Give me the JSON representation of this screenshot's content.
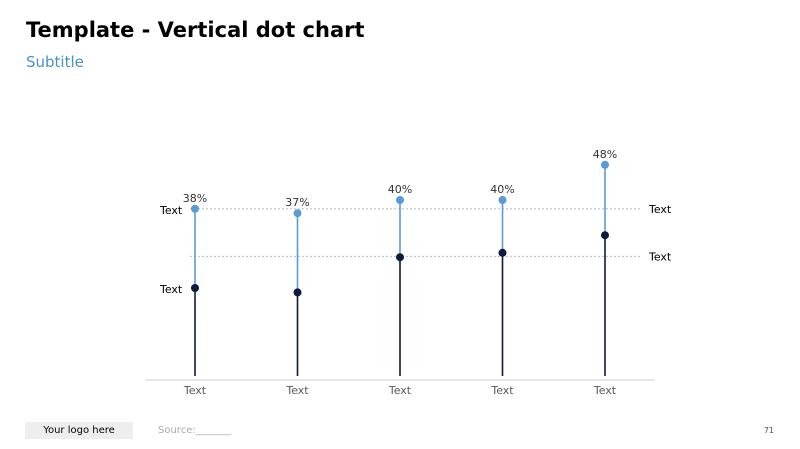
{
  "slide": {
    "title": "Template - Vertical dot chart",
    "subtitle": "Subtitle",
    "logo_text": "Your logo here",
    "source": "Source:_______",
    "page_number": "71"
  },
  "colors": {
    "accent": "#4a90c4",
    "light_series": "#5b9bd5",
    "dark_series": "#0b1a3d",
    "reference_line": "#b0b0b0",
    "axis_line": "#d0d0d0",
    "tick_label": "#595959"
  },
  "chart_data": {
    "type": "dot",
    "categories": [
      "Text",
      "Text",
      "Text",
      "Text",
      "Text"
    ],
    "ylim": [
      0,
      52
    ],
    "series": [
      {
        "name": "",
        "values": [
          38,
          37,
          40,
          40,
          48
        ],
        "labels": [
          "38%",
          "37%",
          "40%",
          "40%",
          "48%"
        ],
        "color": "#5b9bd5"
      },
      {
        "name": "",
        "values": [
          20,
          19,
          27,
          28,
          32
        ],
        "color": "#0b1a3d"
      }
    ],
    "reference_lines": [
      {
        "value": 38,
        "left_label": "Text",
        "right_label": "Text"
      },
      {
        "value": 27.2,
        "left_label": "",
        "right_label": "Text"
      }
    ],
    "left_annotations": [
      {
        "value": 38,
        "text": "Text"
      },
      {
        "value": 20,
        "text": "Text"
      }
    ],
    "grid": false,
    "legend": "none"
  }
}
